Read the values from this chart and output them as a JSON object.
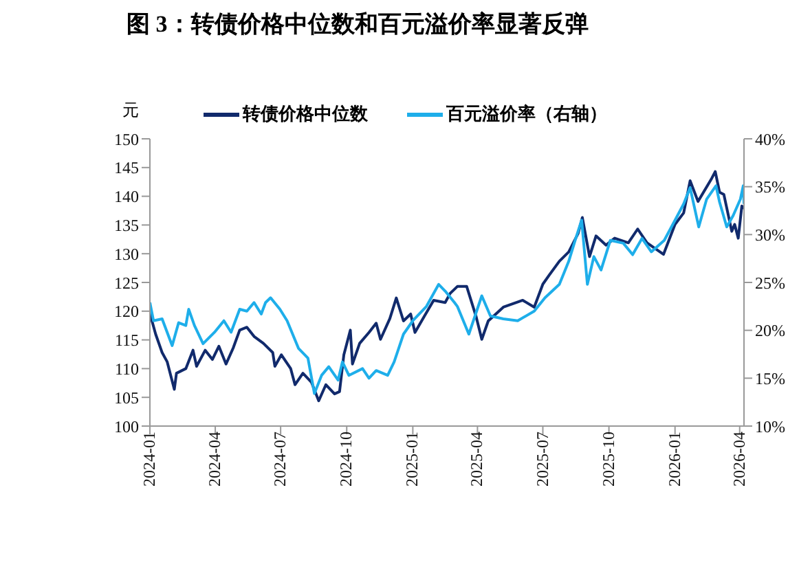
{
  "chart_data": {
    "type": "line",
    "title": "图 3：转债价格中位数和百元溢价率显著反弹",
    "ylabel": "元",
    "legend": "top",
    "marker": "none",
    "grid": false,
    "xlim": [
      "2024-01-01",
      "2026-04-07"
    ],
    "xticks": [
      "2024-01",
      "2024-04",
      "2024-07",
      "2024-10",
      "2025-01",
      "2025-04",
      "2025-07",
      "2025-10",
      "2026-01",
      "2026-04"
    ],
    "ylim": [
      100,
      150
    ],
    "yticks": [
      100,
      105,
      110,
      115,
      120,
      125,
      130,
      135,
      140,
      145,
      150
    ],
    "y2lim": [
      10,
      40
    ],
    "y2ticks": [
      {
        "value": 10,
        "label": "10%"
      },
      {
        "value": 15,
        "label": "15%"
      },
      {
        "value": 20,
        "label": "20%"
      },
      {
        "value": 25,
        "label": "25%"
      },
      {
        "value": 30,
        "label": "30%"
      },
      {
        "value": 35,
        "label": "35%"
      },
      {
        "value": 40,
        "label": "40%"
      }
    ],
    "series": [
      {
        "name": "转债价格中位数",
        "color": "#112a6c",
        "x": [
          "2024-01-01",
          "2024-01-09",
          "2024-01-18",
          "2024-01-25",
          "2024-02-04",
          "2024-02-07",
          "2024-02-20",
          "2024-03-01",
          "2024-03-06",
          "2024-03-18",
          "2024-03-28",
          "2024-04-06",
          "2024-04-16",
          "2024-04-26",
          "2024-05-05",
          "2024-05-15",
          "2024-05-25",
          "2024-06-07",
          "2024-06-20",
          "2024-06-23",
          "2024-07-02",
          "2024-07-15",
          "2024-07-21",
          "2024-08-01",
          "2024-08-13",
          "2024-08-23",
          "2024-09-02",
          "2024-09-14",
          "2024-09-21",
          "2024-09-27",
          "2024-10-06",
          "2024-10-09",
          "2024-10-19",
          "2024-11-01",
          "2024-11-11",
          "2024-11-17",
          "2024-11-30",
          "2024-12-09",
          "2024-12-19",
          "2024-12-29",
          "2025-01-04",
          "2025-01-17",
          "2025-01-30",
          "2025-02-15",
          "2025-02-22",
          "2025-03-04",
          "2025-03-17",
          "2025-03-30",
          "2025-04-07",
          "2025-04-16",
          "2025-05-07",
          "2025-06-03",
          "2025-06-19",
          "2025-07-01",
          "2025-07-10",
          "2025-07-24",
          "2025-08-06",
          "2025-08-19",
          "2025-08-25",
          "2025-09-04",
          "2025-09-13",
          "2025-09-27",
          "2025-10-09",
          "2025-10-28",
          "2025-11-10",
          "2025-11-23",
          "2025-12-16",
          "2026-01-01",
          "2026-01-13",
          "2026-01-22",
          "2026-02-02",
          "2026-02-21",
          "2026-02-26",
          "2026-03-04",
          "2026-03-10",
          "2026-03-21",
          "2026-03-25",
          "2026-03-30",
          "2026-04-04",
          "2026-04-07"
        ],
        "values": [
          119.6,
          116,
          112.8,
          111.2,
          106.4,
          109.2,
          110,
          113.2,
          110.4,
          113.2,
          111.6,
          113.9,
          110.8,
          113.6,
          116.7,
          117.2,
          115.6,
          114.4,
          112.8,
          110.4,
          112.4,
          110,
          107.2,
          109.2,
          107.6,
          104.4,
          107.2,
          105.6,
          106,
          112.4,
          116.7,
          110.8,
          114.4,
          116.3,
          117.9,
          115.1,
          118.7,
          122.3,
          118.3,
          119.5,
          116.3,
          119.1,
          121.9,
          121.5,
          123.1,
          124.3,
          124.3,
          119.1,
          115.1,
          118.3,
          120.7,
          121.9,
          120.7,
          124.7,
          126.3,
          128.7,
          130.3,
          133.5,
          136.3,
          129.5,
          133.1,
          131.5,
          132.7,
          131.9,
          134.3,
          131.9,
          129.9,
          135.1,
          137.1,
          142.7,
          139.1,
          143.1,
          144.3,
          140.7,
          140.3,
          133.9,
          135.1,
          132.7,
          138.3,
          137.9
        ]
      },
      {
        "name": "百元溢价率（右轴）",
        "color": "#1eaeea",
        "axis": "y2",
        "x": [
          "2024-01-01",
          "2024-01-06",
          "2024-01-18",
          "2024-02-01",
          "2024-02-10",
          "2024-02-20",
          "2024-02-24",
          "2024-03-03",
          "2024-03-15",
          "2024-03-31",
          "2024-04-13",
          "2024-04-23",
          "2024-05-05",
          "2024-05-15",
          "2024-05-25",
          "2024-06-04",
          "2024-06-10",
          "2024-06-17",
          "2024-06-30",
          "2024-07-10",
          "2024-07-26",
          "2024-08-08",
          "2024-08-17",
          "2024-08-27",
          "2024-09-06",
          "2024-09-19",
          "2024-09-25",
          "2024-10-04",
          "2024-10-23",
          "2024-11-01",
          "2024-11-11",
          "2024-11-27",
          "2024-12-06",
          "2024-12-19",
          "2025-01-01",
          "2025-01-20",
          "2025-02-06",
          "2025-02-15",
          "2025-02-28",
          "2025-03-04",
          "2025-03-20",
          "2025-04-07",
          "2025-04-19",
          "2025-05-07",
          "2025-05-27",
          "2025-06-19",
          "2025-07-04",
          "2025-07-24",
          "2025-08-06",
          "2025-08-15",
          "2025-08-24",
          "2025-09-01",
          "2025-09-10",
          "2025-09-20",
          "2025-10-03",
          "2025-10-21",
          "2025-11-03",
          "2025-11-16",
          "2025-11-29",
          "2025-12-17",
          "2026-01-01",
          "2026-01-13",
          "2026-01-22",
          "2026-02-03",
          "2026-02-14",
          "2026-02-27",
          "2026-03-04",
          "2026-03-14",
          "2026-03-23",
          "2026-04-02",
          "2026-04-06",
          "2026-04-07"
        ],
        "values": [
          22.9,
          21.0,
          21.2,
          18.4,
          20.8,
          20.5,
          22.2,
          20.5,
          18.6,
          19.8,
          21.0,
          19.8,
          22.2,
          22.0,
          22.9,
          21.7,
          22.9,
          23.4,
          22.2,
          21.0,
          18.1,
          17.1,
          13.4,
          15.3,
          16.2,
          14.8,
          16.7,
          15.3,
          16.0,
          15.0,
          15.8,
          15.3,
          16.7,
          19.6,
          21.0,
          22.5,
          24.8,
          24.1,
          22.9,
          22.5,
          19.6,
          23.6,
          21.5,
          21.2,
          21.0,
          22.0,
          23.4,
          24.8,
          27.2,
          29.4,
          31.5,
          24.8,
          27.7,
          26.3,
          29.4,
          29.1,
          27.9,
          29.6,
          28.2,
          29.4,
          31.5,
          33.2,
          34.9,
          30.8,
          33.7,
          35.1,
          33.4,
          30.8,
          32.0,
          33.7,
          35.1,
          33.2
        ]
      }
    ]
  }
}
